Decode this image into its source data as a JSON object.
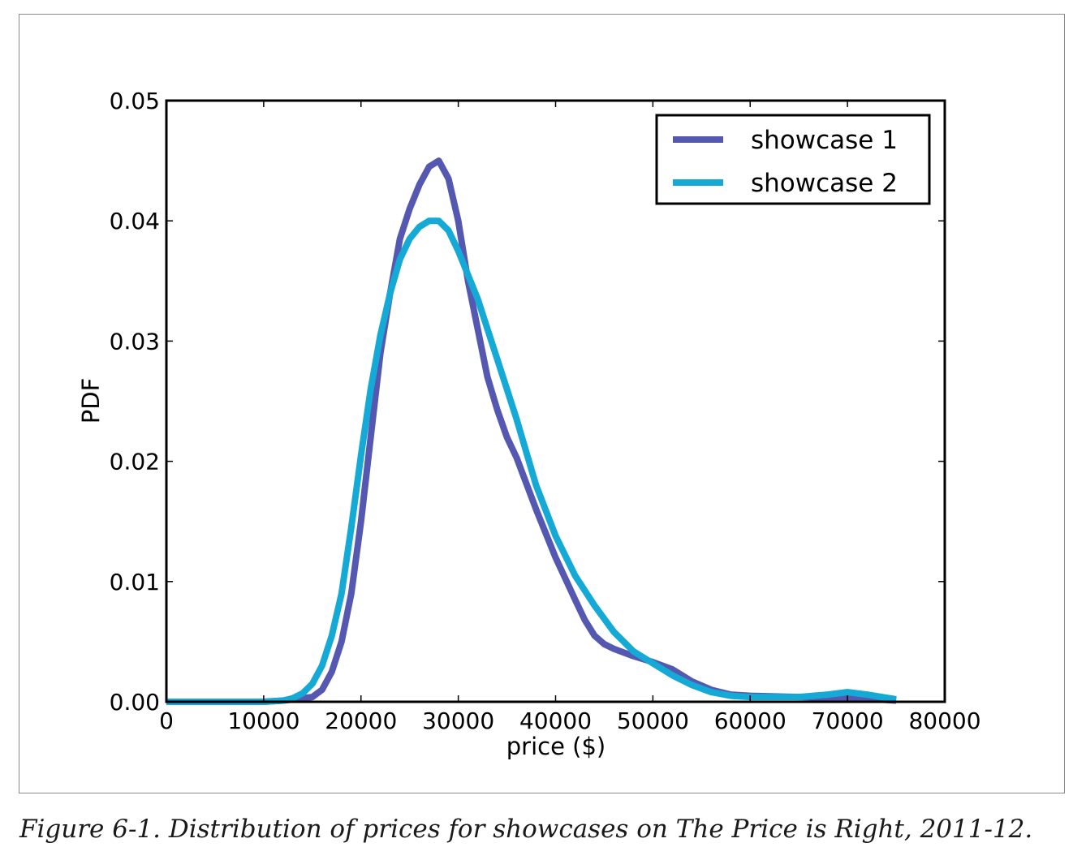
{
  "caption": "Figure 6-1. Distribution of prices for showcases on The Price is Right, 2011-12.",
  "chart_data": {
    "type": "line",
    "title": "",
    "xlabel": "price ($)",
    "ylabel": "PDF",
    "xlim": [
      0,
      80000
    ],
    "ylim": [
      0,
      0.05
    ],
    "xticks": [
      0,
      10000,
      20000,
      30000,
      40000,
      50000,
      60000,
      70000,
      80000
    ],
    "xtick_labels": [
      "0",
      "10000",
      "20000",
      "30000",
      "40000",
      "50000",
      "60000",
      "70000",
      "80000"
    ],
    "yticks": [
      0,
      0.01,
      0.02,
      0.03,
      0.04,
      0.05
    ],
    "ytick_labels": [
      "0.00",
      "0.01",
      "0.02",
      "0.03",
      "0.04",
      "0.05"
    ],
    "grid": false,
    "legend_position": "top-right",
    "series": [
      {
        "name": "showcase 1",
        "color": "#5558b0",
        "x": [
          0,
          10000,
          12000,
          14000,
          15000,
          16000,
          17000,
          18000,
          19000,
          20000,
          21000,
          22000,
          23000,
          24000,
          25000,
          26000,
          27000,
          28000,
          29000,
          30000,
          31000,
          32000,
          33000,
          34000,
          35000,
          36000,
          38000,
          40000,
          42000,
          43000,
          44000,
          45000,
          46000,
          48000,
          50000,
          52000,
          54000,
          56000,
          58000,
          60000,
          65000,
          70000,
          73000,
          75000
        ],
        "y": [
          0.0,
          0.0,
          0.0001,
          0.0003,
          0.0004,
          0.001,
          0.0025,
          0.005,
          0.009,
          0.015,
          0.022,
          0.029,
          0.034,
          0.0385,
          0.041,
          0.043,
          0.0445,
          0.045,
          0.0435,
          0.04,
          0.035,
          0.031,
          0.027,
          0.0243,
          0.022,
          0.0203,
          0.016,
          0.012,
          0.0085,
          0.0068,
          0.0055,
          0.0048,
          0.0044,
          0.0038,
          0.0033,
          0.0027,
          0.0017,
          0.001,
          0.0006,
          0.0005,
          0.0004,
          0.0003,
          0.0002,
          0.0001
        ]
      },
      {
        "name": "showcase 2",
        "color": "#15a9d6",
        "x": [
          0,
          10000,
          12000,
          13000,
          14000,
          15000,
          16000,
          17000,
          18000,
          19000,
          20000,
          21000,
          22000,
          23000,
          24000,
          25000,
          26000,
          27000,
          28000,
          29000,
          30000,
          31000,
          32000,
          33000,
          34000,
          36000,
          38000,
          40000,
          42000,
          44000,
          46000,
          48000,
          50000,
          52000,
          54000,
          56000,
          58000,
          60000,
          65000,
          68000,
          70000,
          72000,
          75000
        ],
        "y": [
          0.0,
          0.0,
          0.0001,
          0.0003,
          0.0007,
          0.0015,
          0.003,
          0.0055,
          0.009,
          0.0145,
          0.0205,
          0.026,
          0.0305,
          0.034,
          0.0368,
          0.0385,
          0.0395,
          0.04,
          0.04,
          0.0392,
          0.0375,
          0.0355,
          0.0335,
          0.031,
          0.0285,
          0.0235,
          0.018,
          0.0138,
          0.0105,
          0.008,
          0.0058,
          0.0042,
          0.0032,
          0.0022,
          0.0014,
          0.0008,
          0.0005,
          0.0004,
          0.0004,
          0.0006,
          0.0008,
          0.0006,
          0.0002
        ]
      }
    ]
  }
}
